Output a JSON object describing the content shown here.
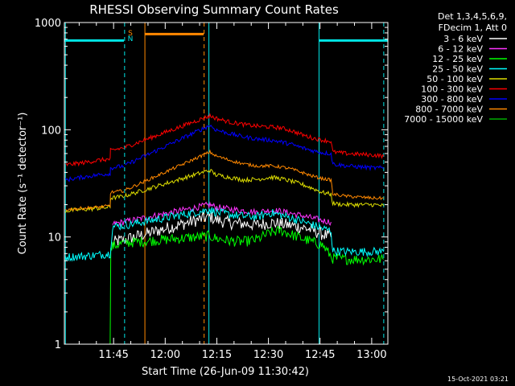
{
  "chart_data": {
    "type": "line",
    "title": "RHESSI Observing Summary Count Rates",
    "xlabel": "Start Time (26-Jun-09 11:30:42)",
    "ylabel": "Count Rate (s⁻¹ detector⁻¹)",
    "ylog": true,
    "ylim": [
      1,
      1000
    ],
    "xlim_minutes_after_start": [
      0,
      94
    ],
    "x_ticks": [
      {
        "label": "11:45",
        "m": 14.3
      },
      {
        "label": "12:00",
        "m": 29.3
      },
      {
        "label": "12:15",
        "m": 44.3
      },
      {
        "label": "12:30",
        "m": 59.3
      },
      {
        "label": "12:45",
        "m": 74.3
      },
      {
        "label": "13:00",
        "m": 89.3
      }
    ],
    "y_ticks": [
      {
        "label": "1",
        "v": 1
      },
      {
        "label": "10",
        "v": 10
      },
      {
        "label": "100",
        "v": 100
      },
      {
        "label": "1000",
        "v": 1000
      }
    ],
    "legend_header": [
      "Det 1,3,4,5,6,9,",
      "FDecim 1, Att 0"
    ],
    "legend_placement": "right",
    "timestamp": "15-Oct-2021 03:21",
    "flags": [
      {
        "label": "S",
        "color": "#ff8800",
        "y": 780,
        "segments": [
          [
            23.5,
            40.5
          ]
        ]
      },
      {
        "label": "N",
        "color": "#00e5e5",
        "y": 680,
        "segments": [
          [
            0,
            17.3
          ],
          [
            74,
            94
          ]
        ]
      }
    ],
    "gaps": [
      [
        17.4,
        42.0
      ]
    ],
    "markers": [
      {
        "m": 0.3,
        "color": "#00e5e5",
        "style": "solid"
      },
      {
        "m": 17.5,
        "color": "#00e5e5",
        "style": "dash"
      },
      {
        "m": 23.4,
        "color": "#ff8800",
        "style": "solid"
      },
      {
        "m": 40.6,
        "color": "#ff8800",
        "style": "dash"
      },
      {
        "m": 42.0,
        "color": "#00e5e5",
        "style": "solid"
      },
      {
        "m": 74.0,
        "color": "#00e5e5",
        "style": "solid"
      },
      {
        "m": 92.8,
        "color": "#00e5e5",
        "style": "dash"
      }
    ],
    "series": [
      {
        "name": "3 - 6 keV",
        "color": "#ffffff",
        "x": [
          14,
          15,
          17.3,
          42.3,
          44,
          48,
          52,
          56,
          60,
          63,
          66,
          69,
          72,
          75,
          77.5
        ],
        "y": [
          8.6,
          9.1,
          9.4,
          15.5,
          14.5,
          13.5,
          13.3,
          13.0,
          13.6,
          13.2,
          12.8,
          12.3,
          11.6,
          10.6,
          10.0
        ],
        "noise": 0.06
      },
      {
        "name": "6 - 12 keV",
        "color": "#ff33ff",
        "x": [
          14,
          15,
          17.3,
          42.3,
          44,
          48,
          52,
          56,
          60,
          63,
          66,
          69,
          72,
          75,
          77.5
        ],
        "y": [
          13.0,
          13.4,
          13.8,
          20.0,
          19.0,
          18.2,
          17.6,
          17.0,
          17.8,
          17.3,
          16.6,
          15.8,
          15.0,
          14.2,
          13.8
        ],
        "noise": 0.03
      },
      {
        "name": "12 - 25 keV",
        "color": "#00ff00",
        "x": [
          13.3,
          13.5,
          14,
          15,
          17.3,
          42.3,
          44,
          48,
          52,
          56,
          60,
          63,
          66,
          69,
          72,
          75,
          78,
          82,
          86,
          90,
          92.8
        ],
        "y": [
          1,
          7.5,
          8.2,
          8.4,
          8.8,
          10.2,
          9.7,
          9.2,
          9.0,
          9.5,
          11.0,
          11.5,
          10.5,
          9.7,
          9.0,
          8.4,
          6.3,
          6.2,
          6.2,
          6.2,
          6.2
        ],
        "noise": 0.05
      },
      {
        "name": "25 - 50 keV",
        "color": "#00ffff",
        "x": [
          0.3,
          5,
          10,
          13.3,
          14,
          17.3,
          42.3,
          44,
          48,
          52,
          56,
          60,
          63,
          66,
          69,
          72,
          75,
          77.5,
          78,
          82,
          86,
          90,
          92.8
        ],
        "y": [
          6.5,
          6.6,
          6.8,
          7.0,
          12.5,
          12.8,
          18.0,
          17.0,
          16.2,
          15.6,
          15.4,
          16.8,
          16.0,
          15.0,
          14.0,
          13.0,
          12.0,
          11.4,
          7.4,
          7.3,
          7.3,
          7.3,
          7.3
        ],
        "noise": 0.04
      },
      {
        "name": "50 - 100 keV",
        "color": "#dddd00",
        "x": [
          0.3,
          5,
          10,
          13.3,
          13.4,
          17.3,
          42.3,
          44,
          48,
          52,
          56,
          60,
          63,
          66,
          69,
          72,
          75,
          77.5,
          78,
          82,
          86,
          90,
          92.8
        ],
        "y": [
          17.5,
          18.0,
          18.5,
          19.0,
          23.0,
          24.0,
          42.0,
          38.0,
          36.0,
          34.0,
          34.5,
          36.0,
          35.0,
          33.0,
          31.0,
          28.5,
          26.0,
          25.0,
          20.5,
          20.0,
          20.0,
          20.0,
          19.5
        ],
        "noise": 0.02
      },
      {
        "name": "100 - 300 keV",
        "color": "#ff0000",
        "x": [
          0.3,
          5,
          10,
          13.3,
          13.4,
          17.3,
          42.3,
          44,
          48,
          52,
          56,
          60,
          63,
          66,
          69,
          72,
          75,
          77.5,
          78,
          82,
          86,
          90,
          92.8
        ],
        "y": [
          47,
          49,
          52,
          53,
          64,
          68,
          135,
          128,
          118,
          112,
          108,
          106,
          104,
          98,
          90,
          84,
          80,
          78,
          62,
          60,
          59,
          58,
          57
        ],
        "noise": 0.02
      },
      {
        "name": "300 - 800 keV",
        "color": "#0000ff",
        "x": [
          0.3,
          5,
          10,
          13.3,
          13.4,
          17.3,
          42.3,
          44,
          48,
          52,
          56,
          60,
          63,
          66,
          69,
          72,
          75,
          77.5,
          78,
          82,
          86,
          90,
          92.8
        ],
        "y": [
          34,
          36,
          38,
          39,
          44,
          46,
          110,
          100,
          92,
          86,
          82,
          80,
          77,
          73,
          68,
          64,
          61,
          60,
          48,
          46,
          45,
          44,
          44
        ],
        "noise": 0.02
      },
      {
        "name": "800 - 7000 keV",
        "color": "#ff8800",
        "x": [
          0.3,
          5,
          10,
          13.3,
          13.4,
          17.3,
          42.3,
          44,
          48,
          52,
          56,
          60,
          63,
          66,
          69,
          72,
          75,
          77.5,
          78,
          82,
          86,
          90,
          92.8
        ],
        "y": [
          18,
          18.5,
          19,
          19.5,
          26,
          27,
          62,
          57,
          52,
          48,
          46,
          46,
          45,
          43,
          40,
          37,
          35,
          34,
          25,
          24,
          23.5,
          23,
          23
        ],
        "noise": 0.015
      },
      {
        "name": "7000 - 15000 keV",
        "color": "#00aa00",
        "x": [],
        "y": [],
        "noise": 0
      }
    ]
  }
}
